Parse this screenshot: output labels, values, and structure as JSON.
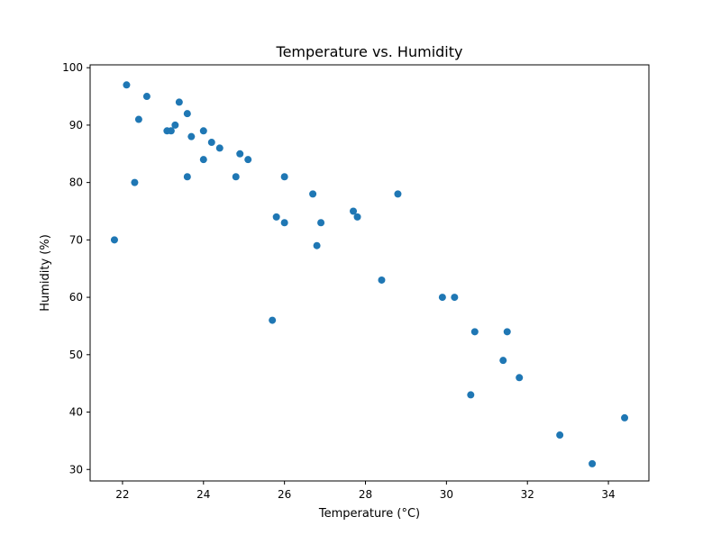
{
  "chart_data": {
    "type": "scatter",
    "title": "Temperature vs. Humidity",
    "xlabel": "Temperature (°C)",
    "ylabel": "Humidity (%)",
    "xlim": [
      21.2,
      35.0
    ],
    "ylim": [
      28,
      100.5
    ],
    "xticks": [
      22,
      24,
      26,
      28,
      30,
      32,
      34
    ],
    "yticks": [
      30,
      40,
      50,
      60,
      70,
      80,
      90,
      100
    ],
    "grid": false,
    "point_color": "#1f77b4",
    "points": [
      {
        "x": 21.8,
        "y": 70
      },
      {
        "x": 22.1,
        "y": 97
      },
      {
        "x": 22.3,
        "y": 80
      },
      {
        "x": 22.4,
        "y": 91
      },
      {
        "x": 22.6,
        "y": 95
      },
      {
        "x": 23.1,
        "y": 89
      },
      {
        "x": 23.2,
        "y": 89
      },
      {
        "x": 23.3,
        "y": 90
      },
      {
        "x": 23.4,
        "y": 94
      },
      {
        "x": 23.6,
        "y": 81
      },
      {
        "x": 23.6,
        "y": 92
      },
      {
        "x": 23.7,
        "y": 88
      },
      {
        "x": 24.0,
        "y": 89
      },
      {
        "x": 24.0,
        "y": 84
      },
      {
        "x": 24.2,
        "y": 87
      },
      {
        "x": 24.4,
        "y": 86
      },
      {
        "x": 24.8,
        "y": 81
      },
      {
        "x": 24.9,
        "y": 85
      },
      {
        "x": 25.1,
        "y": 84
      },
      {
        "x": 25.7,
        "y": 56
      },
      {
        "x": 25.8,
        "y": 74
      },
      {
        "x": 26.0,
        "y": 73
      },
      {
        "x": 26.0,
        "y": 81
      },
      {
        "x": 26.7,
        "y": 78
      },
      {
        "x": 26.8,
        "y": 69
      },
      {
        "x": 26.9,
        "y": 73
      },
      {
        "x": 27.7,
        "y": 75
      },
      {
        "x": 27.8,
        "y": 74
      },
      {
        "x": 28.4,
        "y": 63
      },
      {
        "x": 28.8,
        "y": 78
      },
      {
        "x": 29.9,
        "y": 60
      },
      {
        "x": 30.2,
        "y": 60
      },
      {
        "x": 30.6,
        "y": 43
      },
      {
        "x": 30.7,
        "y": 54
      },
      {
        "x": 31.4,
        "y": 49
      },
      {
        "x": 31.5,
        "y": 54
      },
      {
        "x": 31.8,
        "y": 46
      },
      {
        "x": 32.8,
        "y": 36
      },
      {
        "x": 33.6,
        "y": 31
      },
      {
        "x": 34.4,
        "y": 39
      }
    ]
  }
}
